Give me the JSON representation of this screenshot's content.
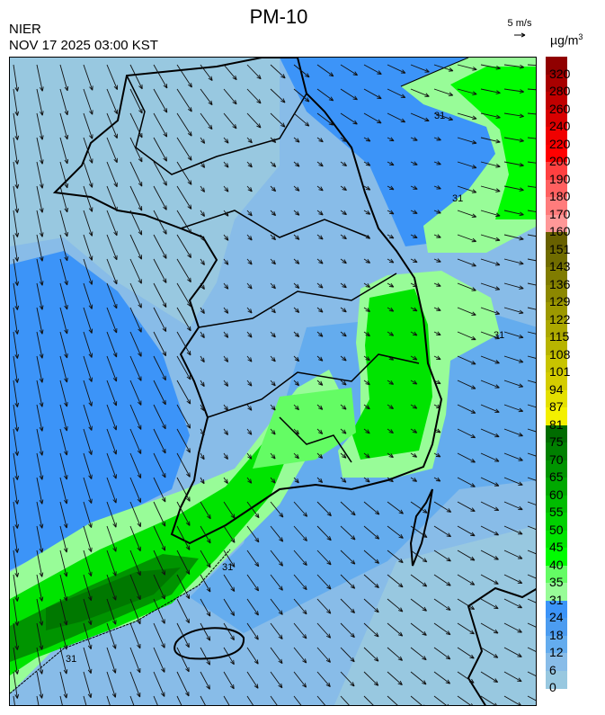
{
  "header": {
    "title": "PM-10",
    "source": "NIER",
    "datetime": "NOV 17 2025 03:00 KST",
    "reference_vector": "5 m/s",
    "unit": "µg/m",
    "unit_sup": "3"
  },
  "legend": {
    "labels": [
      "320",
      "280",
      "260",
      "240",
      "220",
      "200",
      "190",
      "180",
      "170",
      "160",
      "151",
      "143",
      "136",
      "129",
      "122",
      "115",
      "108",
      "101",
      "94",
      "87",
      "81",
      "75",
      "70",
      "65",
      "60",
      "55",
      "50",
      "45",
      "40",
      "35",
      "31",
      "24",
      "18",
      "12",
      "6",
      "0"
    ],
    "colors_top_to_bottom": [
      "#5c0000",
      "#7a0000",
      "#900000",
      "#a80000",
      "#c00000",
      "#d80000",
      "#f00000",
      "#ff0000",
      "#ff4040",
      "#ff6060",
      "#ff7c7c",
      "#ff9898",
      "#686000",
      "#706c00",
      "#807c00",
      "#8c8800",
      "#9c9800",
      "#aca800",
      "#b8b400",
      "#c8c400",
      "#d4cc00",
      "#e4e000",
      "#f4f000",
      "#006c00",
      "#008000",
      "#009400",
      "#00a800",
      "#00bc00",
      "#00d000",
      "#00e400",
      "#00fc00",
      "#64fc64",
      "#98fc98",
      "#3c94f8",
      "#4c9cf0",
      "#64acee",
      "#88bce8",
      "#98c8e0"
    ]
  },
  "map": {
    "colors": {
      "sea_light": "#98c8e0",
      "sea_mid": "#88bce8",
      "sea_blue": "#64acee",
      "sea_dark": "#3c94f8",
      "green_light": "#98fc98",
      "green": "#64fc64",
      "green_bright": "#00fc00",
      "green_dark": "#00a800",
      "green_darkest": "#007800"
    },
    "contour_labels": [
      "31",
      "31",
      "31",
      "31",
      "31"
    ]
  }
}
